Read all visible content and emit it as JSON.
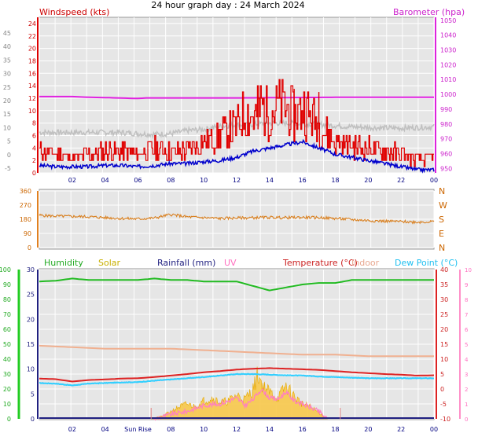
{
  "title": "24 hour graph day : 24 March 2024",
  "colors": {
    "wind": "#e00000",
    "gust_avg": "#0000cc",
    "baro": "#e020e0",
    "avg_wind": "#c0c0c0",
    "direction": "#d98020",
    "humidity": "#22bb22",
    "solar": "#f2b400",
    "rain": "#202080",
    "uv": "#ff80c0",
    "temp": "#dd2222",
    "indoor": "#f0b090",
    "dewpoint": "#30d0ff",
    "panel_bg": "#e4e4e4",
    "grid": "#ffffff"
  },
  "chart_data": [
    {
      "type": "line",
      "panel": "wind-barometer",
      "title": "24 hour graph day : 24 March 2024",
      "left_axis_label": "Windspeed (kts)",
      "right_axis_label": "Barometer (hpa)",
      "x_ticks": [
        "02",
        "04",
        "06",
        "08",
        "10",
        "12",
        "14",
        "16",
        "18",
        "20",
        "22",
        "00"
      ],
      "outer_left_ticks": [
        "45",
        "40",
        "35",
        "30",
        "25",
        "20",
        "15",
        "10",
        "5",
        "0",
        "-5"
      ],
      "left_ticks": [
        "24",
        "22",
        "20",
        "18",
        "16",
        "14",
        "12",
        "10",
        "8",
        "6",
        "4",
        "2",
        "0"
      ],
      "right_ticks": [
        "1050",
        "1040",
        "1030",
        "1020",
        "1010",
        "1000",
        "990",
        "980",
        "970",
        "960",
        "950"
      ],
      "ylim_wind": [
        0,
        25
      ],
      "ylim_baro": [
        947,
        1052
      ],
      "x_hours_range": [
        0,
        24
      ],
      "series": [
        {
          "name": "Barometer (hpa)",
          "key": "baro",
          "x": [
            0,
            2,
            3,
            4,
            6,
            6.5,
            12,
            18,
            24
          ],
          "y": [
            998.5,
            998.5,
            998,
            997.8,
            997.2,
            997.6,
            997.6,
            998,
            998
          ]
        },
        {
          "name": "Windspeed (kts)",
          "key": "wind",
          "x": [
            0,
            1,
            2,
            3,
            4,
            5,
            6,
            7,
            8,
            9,
            10,
            11,
            12,
            12.5,
            13,
            13.5,
            14,
            14.5,
            15,
            15.5,
            16,
            16.5,
            17,
            17.5,
            18,
            19,
            20,
            21,
            22,
            23,
            24
          ],
          "y": [
            3.5,
            3,
            2.5,
            3,
            3.5,
            3.5,
            3,
            4,
            3.5,
            3.5,
            5,
            6,
            7.5,
            10,
            9,
            11,
            9.5,
            11,
            10.5,
            9,
            10.5,
            9,
            8,
            6,
            5,
            4.5,
            4,
            3.5,
            3,
            2,
            2.5
          ],
          "peaks": [
            [
              13.3,
              14
            ],
            [
              15.5,
              13.5
            ],
            [
              17.0,
              13
            ]
          ]
        },
        {
          "name": "",
          "key": "avg_wind",
          "x": [
            0,
            1,
            2,
            3,
            4,
            5,
            6,
            7,
            8,
            9,
            10,
            11,
            12,
            13,
            14,
            15,
            16,
            17,
            18,
            19,
            20,
            21,
            22,
            23,
            24
          ],
          "y": [
            6.5,
            6.5,
            6.5,
            6.5,
            6.5,
            6.5,
            6.3,
            6.2,
            6.3,
            6.8,
            7,
            7.5,
            7.7,
            7.8,
            8,
            8,
            7.9,
            7.8,
            7.6,
            7.4,
            7.3,
            7.2,
            7.2,
            7.3,
            7.4
          ]
        },
        {
          "name": "",
          "key": "gust_avg",
          "x": [
            0,
            1,
            2,
            3,
            4,
            5,
            6,
            7,
            8,
            9,
            10,
            11,
            12,
            13,
            14,
            15,
            16,
            17,
            18,
            19,
            20,
            21,
            22,
            23,
            24
          ],
          "y": [
            1.2,
            1,
            1,
            1,
            1.2,
            1.2,
            1,
            1.2,
            1.5,
            1.5,
            1.8,
            2,
            2.5,
            3.5,
            4,
            4.5,
            5,
            4,
            3,
            2.5,
            2,
            1.5,
            1,
            0.5,
            0.5
          ]
        }
      ]
    },
    {
      "type": "line",
      "panel": "wind-direction",
      "right_labels": [
        "N",
        "W",
        "S",
        "E",
        "N"
      ],
      "left_ticks": [
        "360",
        "270",
        "180",
        "90",
        "0"
      ],
      "ylim": [
        0,
        360
      ],
      "series": [
        {
          "name": "",
          "key": "direction",
          "x": [
            0,
            1,
            2,
            3,
            4,
            5,
            6,
            7,
            8,
            9,
            10,
            11,
            12,
            13,
            14,
            15,
            16,
            17,
            18,
            19,
            20,
            21,
            22,
            23,
            24
          ],
          "y": [
            205,
            200,
            198,
            196,
            190,
            185,
            182,
            188,
            210,
            195,
            190,
            185,
            188,
            190,
            192,
            190,
            192,
            190,
            185,
            178,
            172,
            168,
            165,
            162,
            165
          ]
        }
      ]
    },
    {
      "type": "line",
      "panel": "humidity-temperature",
      "legend": [
        "Humidity",
        "Solar",
        "Rainfall (mm)",
        "UV",
        "Temperature (°C)",
        "Indoor",
        "Dew Point (°C)"
      ],
      "x_ticks": [
        "02",
        "04",
        "Sun Rise",
        "08",
        "10",
        "12",
        "14",
        "16",
        "18",
        "20",
        "22",
        "00"
      ],
      "humidity_ticks": [
        "100",
        "90",
        "80",
        "70",
        "60",
        "50",
        "40",
        "30",
        "20",
        "10",
        "0"
      ],
      "rain_ticks": [
        "30",
        "25",
        "20",
        "15",
        "10",
        "5",
        "0"
      ],
      "temp_ticks": [
        "40",
        "35",
        "30",
        "25",
        "20",
        "15",
        "10",
        "5",
        "0",
        "-5",
        "-10"
      ],
      "uv_ticks": [
        "10",
        "9",
        "8",
        "7",
        "6",
        "5",
        "4",
        "3",
        "2",
        "1",
        "0"
      ],
      "ylim_humidity": [
        0,
        100
      ],
      "ylim_temperature": [
        -10,
        40
      ],
      "series": [
        {
          "name": "Humidity",
          "key": "humidity",
          "x": [
            0,
            1,
            2,
            3,
            4,
            5,
            6,
            7,
            8,
            9,
            10,
            11,
            12,
            13,
            14,
            15,
            16,
            17,
            18,
            19,
            20,
            21,
            22,
            23,
            24
          ],
          "y": [
            92,
            92.5,
            94,
            93,
            93,
            93,
            93,
            94,
            93,
            93,
            92,
            92,
            92,
            89,
            86,
            88,
            90,
            91,
            91,
            93,
            93,
            93,
            93,
            93,
            93
          ]
        },
        {
          "name": "Temperature (°C)",
          "key": "temp",
          "x": [
            0,
            1,
            2,
            3,
            4,
            5,
            6,
            7,
            8,
            9,
            10,
            11,
            12,
            13,
            14,
            15,
            16,
            17,
            18,
            19,
            20,
            21,
            22,
            23,
            24
          ],
          "y": [
            3.5,
            3.3,
            2.5,
            3,
            3.2,
            3.5,
            3.6,
            4,
            4.5,
            5,
            5.6,
            6,
            6.5,
            6.8,
            7,
            6.8,
            6.6,
            6.4,
            6,
            5.6,
            5.3,
            5,
            4.8,
            4.5,
            4.6
          ]
        },
        {
          "name": "Indoor",
          "key": "indoor",
          "x": [
            0,
            2,
            4,
            6,
            8,
            10,
            12,
            14,
            16,
            18,
            20,
            22,
            24
          ],
          "y": [
            14.5,
            14,
            13.5,
            13.5,
            13.5,
            13,
            12.5,
            12,
            11.5,
            11.5,
            11,
            11,
            11
          ]
        },
        {
          "name": "Dew Point (°C)",
          "key": "dewpoint",
          "x": [
            0,
            1,
            2,
            3,
            4,
            5,
            6,
            7,
            8,
            9,
            10,
            11,
            12,
            13,
            14,
            15,
            16,
            17,
            18,
            19,
            20,
            21,
            22,
            23,
            24
          ],
          "y": [
            2,
            1.8,
            1.2,
            1.8,
            2,
            2.2,
            2.3,
            2.8,
            3.2,
            3.6,
            4,
            4.5,
            5,
            5,
            4.8,
            4.6,
            4.5,
            4.2,
            4,
            3.8,
            3.6,
            3.6,
            3.6,
            3.6,
            3.6
          ]
        },
        {
          "name": "Solar",
          "key": "solar",
          "unit_axis": "humidity_percent_scale",
          "x": [
            6.8,
            7.5,
            8,
            8.5,
            9,
            9.5,
            10,
            10.5,
            11,
            11.5,
            12,
            12.5,
            13,
            13.3,
            13.6,
            14,
            14.5,
            15,
            15.5,
            16,
            16.5,
            17,
            17.5
          ],
          "y": [
            0,
            2,
            5,
            8,
            10,
            8,
            12,
            14,
            11,
            12,
            16,
            13,
            20,
            30,
            22,
            18,
            14,
            22,
            15,
            10,
            8,
            4,
            0
          ]
        },
        {
          "name": "UV",
          "key": "uv",
          "unit_axis": "humidity_percent_scale",
          "x": [
            7,
            8,
            9,
            10,
            11,
            12,
            12.5,
            13,
            13.5,
            14,
            14.5,
            15,
            15.5,
            16,
            17,
            17.5
          ],
          "y": [
            0,
            3,
            5,
            9,
            10,
            14,
            9,
            13,
            20,
            14,
            13,
            18,
            12,
            10,
            5,
            0
          ]
        },
        {
          "name": "Rainfall (mm)",
          "key": "rain",
          "x": [
            0,
            24
          ],
          "y": [
            0,
            0
          ]
        }
      ],
      "sunrise_hour": 6.8,
      "sunset_hour": 18.3
    }
  ]
}
